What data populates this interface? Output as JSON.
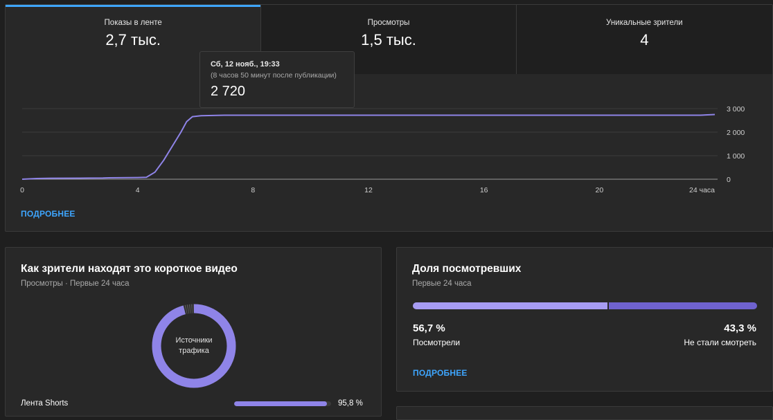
{
  "tabs": [
    {
      "label": "Показы в ленте",
      "value": "2,7 тыс."
    },
    {
      "label": "Просмотры",
      "value": "1,5 тыс."
    },
    {
      "label": "Уникальные зрители",
      "value": "4"
    }
  ],
  "tooltip": {
    "date": "Сб, 12 нояб., 19:33",
    "subtitle": "(8 часов 50 минут после публикации)",
    "value": "2 720"
  },
  "chart_data": {
    "type": "line",
    "x_unit": "hours",
    "xlim": [
      0,
      24
    ],
    "ylim": [
      0,
      3000
    ],
    "x_ticks": [
      {
        "value": 0,
        "label": "0"
      },
      {
        "value": 4,
        "label": "4"
      },
      {
        "value": 8,
        "label": "8"
      },
      {
        "value": 12,
        "label": "12"
      },
      {
        "value": 16,
        "label": "16"
      },
      {
        "value": 20,
        "label": "20"
      },
      {
        "value": 24,
        "label": "24 часа"
      }
    ],
    "y_ticks": [
      {
        "value": 0,
        "label": "0"
      },
      {
        "value": 1000,
        "label": "1 000"
      },
      {
        "value": 2000,
        "label": "2 000"
      },
      {
        "value": 3000,
        "label": "3 000"
      }
    ],
    "grid": true,
    "color": "#8f84e8",
    "series": [
      {
        "x": [
          0,
          0.5,
          1,
          2,
          2.8,
          3,
          4,
          4.3,
          4.6,
          4.9,
          5.2,
          5.5,
          5.7,
          5.9,
          6.2,
          7,
          9,
          12,
          16,
          20,
          23.5,
          24
        ],
        "y": [
          0,
          30,
          40,
          45,
          50,
          60,
          70,
          80,
          300,
          800,
          1400,
          2000,
          2450,
          2660,
          2700,
          2720,
          2720,
          2720,
          2720,
          2720,
          2720,
          2750
        ]
      }
    ]
  },
  "top_card": {
    "details_link": "ПОДРОБНЕЕ"
  },
  "traffic": {
    "title": "Как зрители находят это короткое видео",
    "subtitle": "Просмотры · Первые 24 часа",
    "donut_label_1": "Источники",
    "donut_label_2": "трафика",
    "donut_main_percent": 95.8,
    "donut_main_color": "#8f84e8",
    "sources": [
      {
        "name": "Лента Shorts",
        "value": 95.8,
        "label": "95,8 %"
      }
    ]
  },
  "retention": {
    "title": "Доля посмотревших",
    "subtitle": "Первые 24 часа",
    "watched_percent": 56.7,
    "watched_value": "56,7 %",
    "watched_label": "Посмотрели",
    "skipped_value": "43,3 %",
    "skipped_label": "Не стали смотреть",
    "details_link": "ПОДРОБНЕЕ"
  }
}
